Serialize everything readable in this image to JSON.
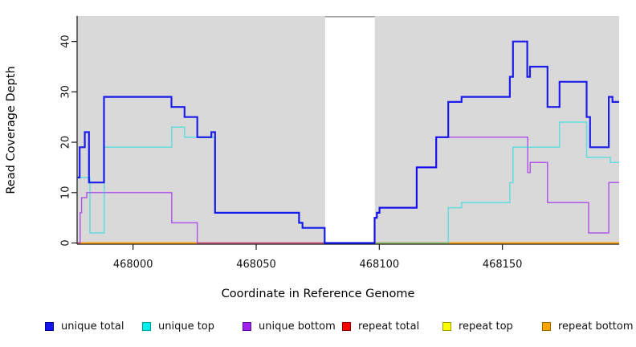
{
  "figure": {
    "xlabel": "Coordinate in Reference Genome",
    "ylabel": "Read Coverage Depth"
  },
  "chart_data": {
    "type": "line",
    "subtype": "step-coverage-plot",
    "title": "",
    "xlabel": "Coordinate in Reference Genome",
    "ylabel": "Read Coverage Depth",
    "grid": false,
    "plot_bg_color": "#d9d9d9",
    "x_axis": {
      "ticks": [
        468000,
        468050,
        468100,
        468150
      ],
      "range": [
        467977.5,
        468197.4
      ]
    },
    "y_axis": {
      "ticks": [
        0,
        10,
        20,
        30,
        40
      ],
      "range": [
        0,
        45
      ]
    },
    "masked_region": {
      "x_start": 468078,
      "x_end": 468098.2,
      "color": "#ffffff",
      "cap_color": "#8f8f8f"
    },
    "series": [
      {
        "name": "repeat total",
        "color": "#e01010",
        "opacity": 1,
        "width": 1.4,
        "steps": [
          [
            467977.5,
            0
          ]
        ],
        "end_x": 468197.4
      },
      {
        "name": "repeat top",
        "color": "#f2f200",
        "opacity": 1,
        "width": 1.4,
        "steps": [
          [
            467977.5,
            0
          ]
        ],
        "end_x": 468197.4
      },
      {
        "name": "repeat bottom",
        "color": "#ff9d00",
        "opacity": 1,
        "width": 1.7,
        "steps": [
          [
            467977.5,
            0
          ]
        ],
        "end_x": 468197.4
      },
      {
        "name": "unique bottom",
        "color": "#a020f0",
        "opacity": 0.7,
        "width": 1.5,
        "steps": [
          [
            467977.5,
            0
          ],
          [
            467978.5,
            6
          ],
          [
            467979.1,
            9
          ],
          [
            467981.2,
            10
          ],
          [
            468015.7,
            4
          ],
          [
            468026.1,
            0
          ],
          [
            468098.1,
            5
          ],
          [
            468099,
            6
          ],
          [
            468100.1,
            7
          ],
          [
            468115.2,
            15
          ],
          [
            468123.1,
            21
          ],
          [
            468160.3,
            14
          ],
          [
            468161.3,
            16
          ],
          [
            468168.3,
            8
          ],
          [
            468185,
            2
          ],
          [
            468193.2,
            12
          ]
        ],
        "end_x": 468197.4
      },
      {
        "name": "unique top",
        "color": "#00e0e0",
        "opacity": 0.55,
        "width": 1.5,
        "steps": [
          [
            467977.5,
            13
          ],
          [
            467982.5,
            2
          ],
          [
            467988.3,
            19
          ],
          [
            468015.7,
            23
          ],
          [
            468020.9,
            21
          ],
          [
            468033.3,
            6
          ],
          [
            468067.4,
            4
          ],
          [
            468068.8,
            3
          ],
          [
            468077.8,
            0
          ],
          [
            468128,
            7
          ],
          [
            468133.4,
            8
          ],
          [
            468153,
            12
          ],
          [
            468154.3,
            19
          ],
          [
            468173.2,
            24
          ],
          [
            468184.2,
            17
          ],
          [
            468193.8,
            16
          ]
        ],
        "end_x": 468197.4
      },
      {
        "name": "unique total",
        "color": "#0000ee",
        "opacity": 0.87,
        "width": 2.2,
        "steps": [
          [
            467977.5,
            13
          ],
          [
            467978.3,
            19
          ],
          [
            467980.4,
            22
          ],
          [
            467982.1,
            12
          ],
          [
            467988.2,
            29
          ],
          [
            468015.6,
            27
          ],
          [
            468020.9,
            25
          ],
          [
            468026.1,
            21
          ],
          [
            468031.8,
            22
          ],
          [
            468033.3,
            6
          ],
          [
            468067.4,
            4
          ],
          [
            468068.8,
            3
          ],
          [
            468077.8,
            0
          ],
          [
            468098.1,
            5
          ],
          [
            468099,
            6
          ],
          [
            468100.1,
            7
          ],
          [
            468115.2,
            15
          ],
          [
            468123.1,
            21
          ],
          [
            468128,
            28
          ],
          [
            468133.4,
            29
          ],
          [
            468153,
            33
          ],
          [
            468154.3,
            40
          ],
          [
            468160.1,
            33
          ],
          [
            468161.2,
            35
          ],
          [
            468168.3,
            27
          ],
          [
            468173.2,
            32
          ],
          [
            468184.2,
            25
          ],
          [
            468185.6,
            19
          ],
          [
            468193.2,
            29
          ],
          [
            468194.7,
            28
          ]
        ],
        "end_x": 468197.4
      }
    ]
  },
  "legend": {
    "items": [
      {
        "label": "unique total",
        "fill": "#1414ee",
        "border": "#00008c"
      },
      {
        "label": "unique top",
        "fill": "#00efef",
        "border": "#009d9d"
      },
      {
        "label": "unique bottom",
        "fill": "#a021ef",
        "border": "#5e0d95"
      },
      {
        "label": "repeat total",
        "fill": "#ff0000",
        "border": "#8c0000"
      },
      {
        "label": "repeat top",
        "fill": "#fcfc00",
        "border": "#9d9d00"
      },
      {
        "label": "repeat bottom",
        "fill": "#ffa500",
        "border": "#9d6a00"
      }
    ]
  }
}
